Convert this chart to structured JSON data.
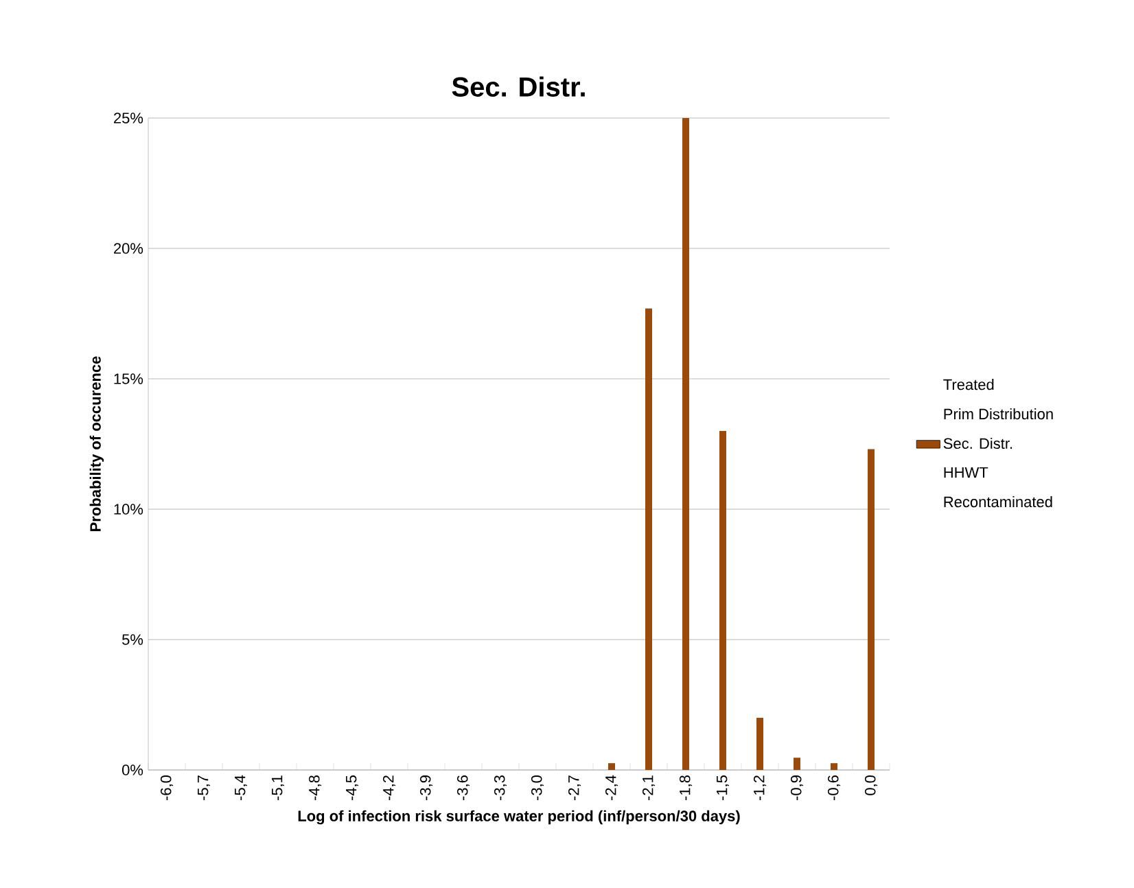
{
  "chart_data": {
    "type": "bar",
    "title": "Sec. Distr.",
    "xlabel": "Log of infection risk surface water period (inf/person/30 days)",
    "ylabel": "Probability of occurence",
    "categories": [
      "-6,0",
      "-5,7",
      "-5,4",
      "-5,1",
      "-4,8",
      "-4,5",
      "-4,2",
      "-3,9",
      "-3,6",
      "-3,3",
      "-3,0",
      "-2,7",
      "-2,4",
      "-2,1",
      "-1,8",
      "-1,5",
      "-1,2",
      "-0,9",
      "-0,6",
      "0,0"
    ],
    "series": [
      {
        "name": "Treated",
        "values": [
          null,
          null,
          null,
          null,
          null,
          null,
          null,
          null,
          null,
          null,
          null,
          null,
          null,
          null,
          null,
          null,
          null,
          null,
          null,
          null
        ]
      },
      {
        "name": "Prim Distribution",
        "values": [
          null,
          null,
          null,
          null,
          null,
          null,
          null,
          null,
          null,
          null,
          null,
          null,
          null,
          null,
          null,
          null,
          null,
          null,
          null,
          null
        ]
      },
      {
        "name": "Sec. Distr.",
        "color": "#9c4a0a",
        "values": [
          0,
          0,
          0,
          0,
          0,
          0,
          0,
          0,
          0,
          0,
          0,
          0,
          0.26,
          17.7,
          25,
          13.0,
          2.0,
          0.47,
          0.26,
          12.3
        ]
      },
      {
        "name": "HHWT",
        "values": [
          null,
          null,
          null,
          null,
          null,
          null,
          null,
          null,
          null,
          null,
          null,
          null,
          null,
          null,
          null,
          null,
          null,
          null,
          null,
          null
        ]
      },
      {
        "name": "Recontaminated",
        "values": [
          null,
          null,
          null,
          null,
          null,
          null,
          null,
          null,
          null,
          null,
          null,
          null,
          null,
          null,
          null,
          null,
          null,
          null,
          null,
          null
        ]
      }
    ],
    "ylim": [
      0,
      25
    ],
    "yticks": [
      {
        "value": 0,
        "label": "0%"
      },
      {
        "value": 5,
        "label": "5%"
      },
      {
        "value": 10,
        "label": "10%"
      },
      {
        "value": 15,
        "label": "15%"
      },
      {
        "value": 20,
        "label": "20%"
      },
      {
        "value": 25,
        "label": "25%"
      }
    ],
    "grid": "y",
    "legend": "right"
  }
}
